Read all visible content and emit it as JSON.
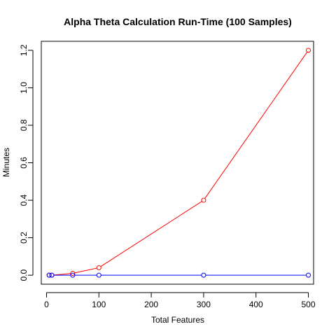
{
  "chart_data": {
    "type": "line",
    "title": "Alpha Theta Calculation Run-Time (100 Samples)",
    "xlabel": "Total Features",
    "ylabel": "Minutes",
    "xlim": [
      -10,
      510
    ],
    "ylim": [
      -0.048,
      1.248
    ],
    "xticks": [
      0,
      100,
      200,
      300,
      400,
      500
    ],
    "yticks": [
      0.0,
      0.2,
      0.4,
      0.6,
      0.8,
      1.0,
      1.2
    ],
    "ytick_labels": [
      "0.0",
      "0.2",
      "0.4",
      "0.6",
      "0.8",
      "1.0",
      "1.2"
    ],
    "grid": false,
    "legend": "none",
    "series": [
      {
        "color": "#ff0000",
        "x": [
          5,
          10,
          50,
          100,
          300,
          500
        ],
        "y": [
          0.0,
          0.0,
          0.01,
          0.04,
          0.4,
          1.2
        ]
      },
      {
        "color": "#0000ff",
        "x": [
          5,
          10,
          50,
          100,
          300,
          500
        ],
        "y": [
          0.0,
          0.0,
          0.0,
          0.0,
          0.0,
          0.0
        ]
      }
    ]
  }
}
